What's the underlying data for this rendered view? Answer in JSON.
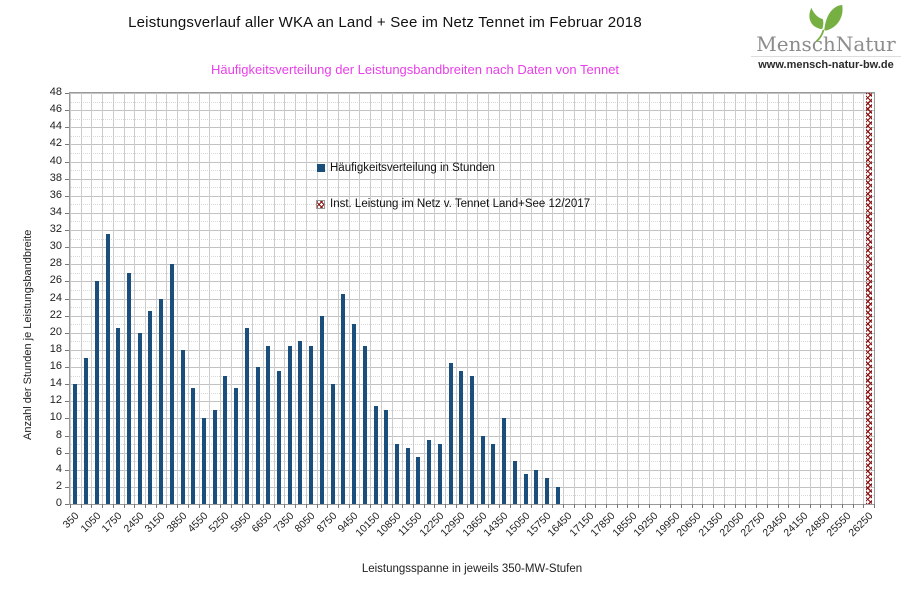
{
  "header": {
    "title": "Leistungsverlauf aller WKA an Land + See im Netz Tennet im Februar 2018",
    "subtitle": "Häufigkeitsverteilung der Leistungsbandbreiten nach Daten von Tennet",
    "subtitle_color": "#e93fe9"
  },
  "logo": {
    "brand_first": "Mensch",
    "brand_second": "Natur",
    "url": "www.mensch-natur-bw.de",
    "leaf_color": "#76b043",
    "text_color": "#8c8c8c"
  },
  "legend": {
    "series1_label": "Häufigkeitsverteilung in Stunden",
    "series2_label": "Inst. Leistung im Netz v. Tennet  Land+See 12/2017"
  },
  "chart_data": {
    "type": "bar",
    "title": "Leistungsverlauf aller WKA an Land + See im Netz Tennet im Februar 2018",
    "subtitle": "Häufigkeitsverteilung der Leistungsbandbreiten nach Daten von Tennet",
    "xlabel": "Leistungsspanne in jeweils 350-MW-Stufen",
    "ylabel": "Anzahl der Stunden je Leistungsbandbreite",
    "ylim": [
      0,
      48
    ],
    "ytick_step": 2,
    "xtick_label_every": 2,
    "bin_width_mw": 350,
    "bar_color": "#1a4f7d",
    "grid": true,
    "legend_position": "inside-top",
    "categories": [
      350,
      700,
      1050,
      1400,
      1750,
      2100,
      2450,
      2800,
      3150,
      3500,
      3850,
      4200,
      4550,
      4900,
      5250,
      5600,
      5950,
      6300,
      6650,
      7000,
      7350,
      7700,
      8050,
      8400,
      8750,
      9100,
      9450,
      9800,
      10150,
      10500,
      10850,
      11200,
      11550,
      11900,
      12250,
      12600,
      12950,
      13300,
      13650,
      14000,
      14350,
      14700,
      15050,
      15400,
      15750,
      16100,
      16450,
      16800,
      17150,
      17500,
      17850,
      18200,
      18550,
      18900,
      19250,
      19600,
      19950,
      20300,
      20650,
      21000,
      21350,
      21700,
      22050,
      22400,
      22750,
      23100,
      23450,
      23800,
      24150,
      24500,
      24850,
      25200,
      25550,
      25900,
      26250
    ],
    "values": [
      14,
      17,
      26,
      31.5,
      20.5,
      27,
      20,
      22.5,
      24,
      28,
      18,
      13.5,
      10,
      11,
      15,
      13.5,
      20.5,
      16,
      18.5,
      15.5,
      18.5,
      19,
      18.5,
      22,
      14,
      24.5,
      21,
      18.5,
      11.5,
      11,
      7,
      6.5,
      5.5,
      7.5,
      7,
      16.5,
      15.5,
      15,
      8,
      7,
      10,
      5,
      3.5,
      4,
      3,
      2,
      0,
      0,
      0,
      0,
      0,
      0,
      0,
      0,
      0,
      0,
      0,
      0,
      0,
      0,
      0,
      0,
      0,
      0,
      0,
      0,
      0,
      0,
      0,
      0,
      0,
      0,
      0,
      0,
      0
    ],
    "capacity_marker": {
      "category": 26250,
      "color": "#8b1717",
      "label": "Inst. Leistung im Netz v. Tennet  Land+See 12/2017"
    }
  }
}
